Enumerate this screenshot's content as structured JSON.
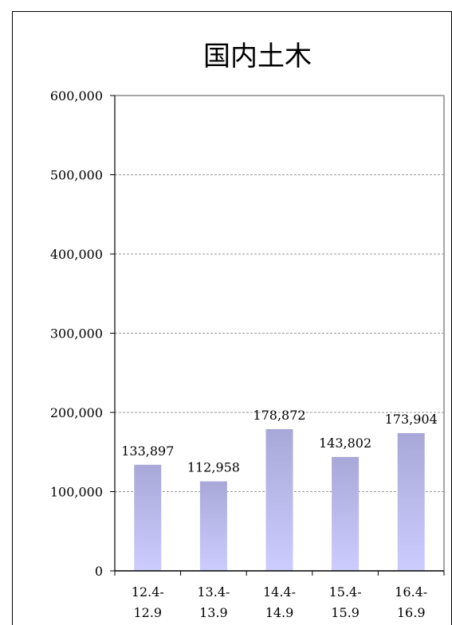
{
  "chart_data": {
    "type": "bar",
    "title": "国内土木",
    "categories": [
      [
        "12.4-",
        "12.9"
      ],
      [
        "13.4-",
        "13.9"
      ],
      [
        "14.4-",
        "14.9"
      ],
      [
        "15.4-",
        "15.9"
      ],
      [
        "16.4-",
        "16.9"
      ]
    ],
    "values": [
      133897,
      112958,
      178872,
      143802,
      173904
    ],
    "value_labels": [
      "133,897",
      "112,958",
      "178,872",
      "143,802",
      "173,904"
    ],
    "yticks": [
      0,
      100000,
      200000,
      300000,
      400000,
      500000,
      600000
    ],
    "ytick_labels": [
      "0",
      "100,000",
      "200,000",
      "300,000",
      "400,000",
      "500,000",
      "600,000"
    ],
    "ylim": [
      0,
      600000
    ],
    "grid": true,
    "legend": "none",
    "bar_color_top": "#a8a8d8",
    "bar_color_bottom": "#ccccff"
  }
}
